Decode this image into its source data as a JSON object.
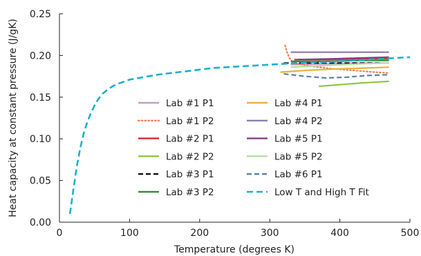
{
  "chart_data": {
    "type": "line",
    "title": "",
    "xlabel": "Temperature (degrees K)",
    "ylabel": "Heat capacity at constant pressure (J/gK)",
    "xlim": [
      0,
      500
    ],
    "ylim": [
      0.0,
      0.25
    ],
    "x_ticks": [
      "0",
      "100",
      "200",
      "300",
      "400",
      "500"
    ],
    "y_ticks": [
      "0.00",
      "0.05",
      "0.10",
      "0.15",
      "0.20",
      "0.25"
    ],
    "grid": false,
    "legend_placement": "lower-right, two columns",
    "series": [
      {
        "name": "Lab #1 P1",
        "color": "#c79ac7",
        "dash": "solid",
        "x": [
          330,
          380,
          430,
          470
        ],
        "y": [
          0.189,
          0.19,
          0.191,
          0.191
        ]
      },
      {
        "name": "Lab #1 P2",
        "color": "#e8825a",
        "dash": "dot",
        "x": [
          322,
          325,
          328,
          332,
          340,
          360,
          390,
          420,
          450,
          470
        ],
        "y": [
          0.212,
          0.203,
          0.197,
          0.193,
          0.19,
          0.187,
          0.184,
          0.182,
          0.18,
          0.179
        ]
      },
      {
        "name": "Lab #2 P1",
        "color": "#d62a2a",
        "dash": "solid",
        "x": [
          335,
          380,
          430,
          470
        ],
        "y": [
          0.195,
          0.195,
          0.196,
          0.196
        ]
      },
      {
        "name": "Lab #2 P2",
        "color": "#8cc63f",
        "dash": "solid",
        "x": [
          370,
          400,
          430,
          470
        ],
        "y": [
          0.163,
          0.165,
          0.167,
          0.169
        ]
      },
      {
        "name": "Lab #3 P1",
        "color": "#111111",
        "dash": "dash",
        "x": [
          320,
          360,
          400,
          440,
          460
        ],
        "y": [
          0.191,
          0.191,
          0.191,
          0.191,
          0.191
        ]
      },
      {
        "name": "Lab #3 P2",
        "color": "#3a8a3a",
        "dash": "solid",
        "x": [
          330,
          380,
          430,
          470
        ],
        "y": [
          0.193,
          0.193,
          0.194,
          0.194
        ]
      },
      {
        "name": "Lab #4 P1",
        "color": "#e8b040",
        "dash": "solid",
        "x": [
          315,
          350,
          400,
          440,
          470
        ],
        "y": [
          0.18,
          0.182,
          0.184,
          0.185,
          0.186
        ]
      },
      {
        "name": "Lab #4 P2",
        "color": "#8c7bb0",
        "dash": "solid",
        "x": [
          330,
          380,
          430,
          470
        ],
        "y": [
          0.204,
          0.204,
          0.204,
          0.204
        ]
      },
      {
        "name": "Lab #5 P1",
        "color": "#8a3a8a",
        "dash": "solid",
        "x": [
          340,
          390,
          430,
          470
        ],
        "y": [
          0.195,
          0.196,
          0.197,
          0.198
        ]
      },
      {
        "name": "Lab #5 P2",
        "color": "#b8dca0",
        "dash": "solid",
        "x": [
          330,
          380,
          430,
          470
        ],
        "y": [
          0.186,
          0.188,
          0.19,
          0.191
        ]
      },
      {
        "name": "Lab #6 P1",
        "color": "#5a80a8",
        "dash": "dash",
        "x": [
          320,
          350,
          380,
          410,
          440,
          470
        ],
        "y": [
          0.178,
          0.175,
          0.173,
          0.174,
          0.176,
          0.177
        ]
      },
      {
        "name": "Low T and High T Fit",
        "color": "#1ab0cc",
        "dash": "longdash",
        "x": [
          15,
          20,
          25,
          30,
          35,
          40,
          45,
          50,
          55,
          60,
          70,
          80,
          90,
          100,
          120,
          140,
          160,
          180,
          200,
          220,
          240,
          260,
          280,
          300,
          320,
          340,
          360,
          380,
          400,
          420,
          440,
          460,
          480,
          500
        ],
        "y": [
          0.01,
          0.04,
          0.068,
          0.09,
          0.108,
          0.121,
          0.131,
          0.14,
          0.147,
          0.153,
          0.16,
          0.165,
          0.168,
          0.171,
          0.174,
          0.177,
          0.179,
          0.181,
          0.183,
          0.185,
          0.186,
          0.187,
          0.188,
          0.189,
          0.19,
          0.191,
          0.192,
          0.192,
          0.193,
          0.194,
          0.195,
          0.196,
          0.197,
          0.198
        ]
      }
    ]
  }
}
